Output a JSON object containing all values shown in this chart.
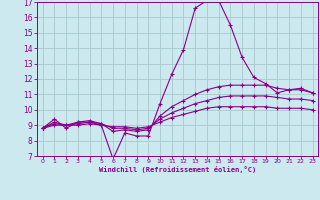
{
  "title": "",
  "xlabel": "Windchill (Refroidissement éolien,°C)",
  "ylabel": "",
  "background_color": "#cde9f0",
  "grid_color": "#a8c8cc",
  "line_color": "#880088",
  "xlim": [
    -0.5,
    23.5
  ],
  "ylim": [
    7,
    17
  ],
  "xticks": [
    0,
    1,
    2,
    3,
    4,
    5,
    6,
    7,
    8,
    9,
    10,
    11,
    12,
    13,
    14,
    15,
    16,
    17,
    18,
    19,
    20,
    21,
    22,
    23
  ],
  "yticks": [
    7,
    8,
    9,
    10,
    11,
    12,
    13,
    14,
    15,
    16,
    17
  ],
  "series": [
    [
      8.8,
      9.4,
      8.8,
      9.2,
      9.2,
      9.0,
      6.8,
      8.5,
      8.3,
      8.3,
      10.4,
      12.3,
      13.9,
      16.6,
      17.1,
      17.1,
      15.5,
      13.4,
      12.1,
      11.7,
      11.1,
      11.3,
      11.4,
      11.1
    ],
    [
      8.8,
      9.2,
      9.0,
      9.2,
      9.3,
      9.1,
      8.6,
      8.7,
      8.6,
      8.7,
      9.6,
      10.2,
      10.6,
      11.0,
      11.3,
      11.5,
      11.6,
      11.6,
      11.6,
      11.6,
      11.4,
      11.3,
      11.3,
      11.1
    ],
    [
      8.8,
      9.1,
      9.0,
      9.1,
      9.2,
      9.1,
      8.8,
      8.8,
      8.7,
      8.8,
      9.4,
      9.8,
      10.1,
      10.4,
      10.6,
      10.8,
      10.9,
      10.9,
      10.9,
      10.9,
      10.8,
      10.7,
      10.7,
      10.6
    ],
    [
      8.8,
      9.0,
      9.0,
      9.0,
      9.1,
      9.0,
      8.9,
      8.9,
      8.8,
      8.9,
      9.2,
      9.5,
      9.7,
      9.9,
      10.1,
      10.2,
      10.2,
      10.2,
      10.2,
      10.2,
      10.1,
      10.1,
      10.1,
      10.0
    ]
  ],
  "marker": "+",
  "markersize": 3.5,
  "linewidth": 0.8
}
